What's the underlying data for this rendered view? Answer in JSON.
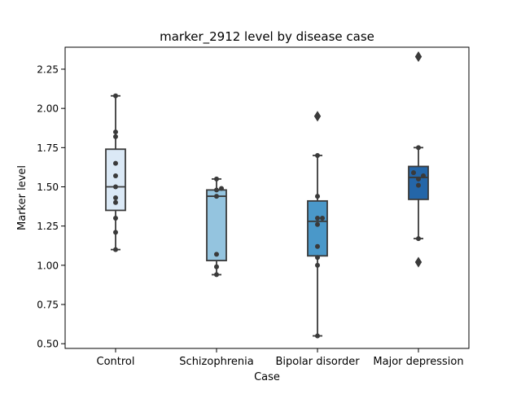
{
  "chart_data": {
    "type": "box",
    "title": "marker_2912 level by disease case",
    "xlabel": "Case",
    "ylabel": "Marker level",
    "ylim": [
      0.47,
      2.39
    ],
    "yticks": [
      0.5,
      0.75,
      1.0,
      1.25,
      1.5,
      1.75,
      2.0,
      2.25
    ],
    "ytick_labels": [
      "0.50",
      "0.75",
      "1.00",
      "1.25",
      "1.50",
      "1.75",
      "2.00",
      "2.25"
    ],
    "categories": [
      "Control",
      "Schizophrenia",
      "Bipolar disorder",
      "Major depression"
    ],
    "grid": false,
    "legend": "none",
    "groups": [
      {
        "category": "Control",
        "color": "#dbe9f6",
        "q1": 1.35,
        "median": 1.5,
        "q3": 1.74,
        "whisker_low": 1.1,
        "whisker_high": 2.08,
        "outliers": [],
        "points": [
          1.1,
          1.21,
          1.3,
          1.4,
          1.43,
          1.5,
          1.57,
          1.65,
          1.82,
          1.85,
          2.08
        ]
      },
      {
        "category": "Schizophrenia",
        "color": "#94c4df",
        "q1": 1.03,
        "median": 1.44,
        "q3": 1.48,
        "whisker_low": 0.94,
        "whisker_high": 1.55,
        "outliers": [],
        "points": [
          0.94,
          0.99,
          1.07,
          1.44,
          1.48,
          1.49,
          1.55
        ]
      },
      {
        "category": "Bipolar disorder",
        "color": "#4a98c9",
        "q1": 1.06,
        "median": 1.28,
        "q3": 1.41,
        "whisker_low": 0.55,
        "whisker_high": 1.7,
        "outliers": [
          1.95
        ],
        "points": [
          0.55,
          1.0,
          1.05,
          1.12,
          1.26,
          1.3,
          1.3,
          1.44,
          1.7
        ]
      },
      {
        "category": "Major depression",
        "color": "#2466a8",
        "q1": 1.42,
        "median": 1.56,
        "q3": 1.63,
        "whisker_low": 1.17,
        "whisker_high": 1.75,
        "outliers": [
          1.02,
          2.33
        ],
        "points": [
          1.17,
          1.51,
          1.55,
          1.57,
          1.59,
          1.75
        ]
      }
    ]
  }
}
